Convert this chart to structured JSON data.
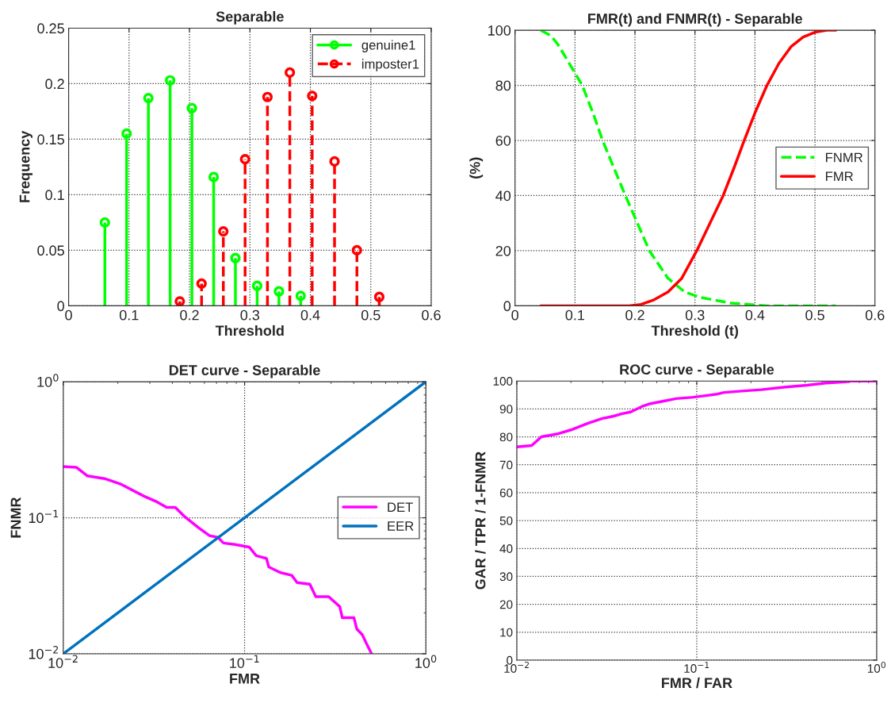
{
  "chart_data": [
    {
      "type": "lollipop",
      "title": "Separable",
      "xlabel": "Threshold",
      "ylabel": "Frequency",
      "xlim": [
        0,
        0.6
      ],
      "xticks": [
        0,
        0.1,
        0.2,
        0.3,
        0.4,
        0.5,
        0.6
      ],
      "ylim": [
        0,
        0.25
      ],
      "yticks": [
        0,
        0.05,
        0.1,
        0.15,
        0.2,
        0.25
      ],
      "grid": true,
      "legend": "top right",
      "marker": "circle",
      "series": [
        {
          "name": "genuine1",
          "color": "#00ff00",
          "line_style": "solid",
          "x": [
            0.06,
            0.096,
            0.132,
            0.168,
            0.204,
            0.24,
            0.276,
            0.312,
            0.348,
            0.384
          ],
          "values": [
            0.075,
            0.155,
            0.187,
            0.203,
            0.178,
            0.116,
            0.043,
            0.018,
            0.013,
            0.009
          ]
        },
        {
          "name": "imposter1",
          "color": "#ff0000",
          "line_style": "dashed",
          "x": [
            0.184,
            0.22,
            0.256,
            0.292,
            0.329,
            0.366,
            0.403,
            0.44,
            0.477,
            0.514
          ],
          "values": [
            0.004,
            0.02,
            0.067,
            0.132,
            0.188,
            0.21,
            0.189,
            0.13,
            0.05,
            0.008
          ]
        }
      ]
    },
    {
      "type": "line",
      "title": "FMR(t) and FNMR(t) - Separable",
      "xlabel": "Threshold (t)",
      "ylabel": "(%)",
      "xlim": [
        0,
        0.6
      ],
      "xticks": [
        0,
        0.1,
        0.2,
        0.3,
        0.4,
        0.5,
        0.6
      ],
      "ylim": [
        0,
        100
      ],
      "yticks": [
        0,
        20,
        40,
        60,
        80,
        100
      ],
      "grid": true,
      "legend": "right",
      "series": [
        {
          "name": "FNMR",
          "color": "#00ff00",
          "line_style": "dashed",
          "x": [
            0.043,
            0.06,
            0.071,
            0.085,
            0.112,
            0.13,
            0.146,
            0.165,
            0.184,
            0.2,
            0.224,
            0.255,
            0.283,
            0.31,
            0.335,
            0.36,
            0.39,
            0.42,
            0.535
          ],
          "values": [
            100,
            98,
            95,
            90,
            80,
            70,
            60,
            50,
            40,
            32,
            20,
            10,
            5,
            3,
            2,
            1,
            0.5,
            0,
            0
          ]
        },
        {
          "name": "FMR",
          "color": "#ff0000",
          "line_style": "solid",
          "x": [
            0.043,
            0.19,
            0.21,
            0.23,
            0.255,
            0.278,
            0.303,
            0.325,
            0.347,
            0.365,
            0.382,
            0.4,
            0.42,
            0.44,
            0.46,
            0.48,
            0.5,
            0.52,
            0.535
          ],
          "values": [
            0,
            0,
            0.5,
            2,
            5,
            10,
            20,
            30,
            40,
            50,
            60,
            70,
            80,
            88,
            94,
            97.5,
            99.3,
            100,
            100
          ]
        }
      ]
    },
    {
      "type": "line",
      "title": "DET curve - Separable",
      "xlabel": "FMR",
      "ylabel": "FNMR",
      "log": "xy",
      "xlim": [
        0.01,
        1
      ],
      "xticks": [
        {
          "value": 0.01,
          "label": "10$^{−2}$"
        },
        {
          "value": 0.1,
          "label": "10$^{−1}$"
        },
        {
          "value": 1,
          "label": "10$^{0}$"
        }
      ],
      "ylim": [
        0.01,
        1
      ],
      "yticks": [
        {
          "value": 0.01,
          "label": "10$^{−2}$"
        },
        {
          "value": 0.1,
          "label": "10$^{−1}$"
        },
        {
          "value": 1,
          "label": "10$^{0}$"
        }
      ],
      "grid": true,
      "legend": "right",
      "series": [
        {
          "name": "DET",
          "color": "#ff00ff",
          "line_style": "solid",
          "x": [
            0.01,
            0.0118,
            0.0136,
            0.0169,
            0.0209,
            0.0279,
            0.0328,
            0.0372,
            0.0415,
            0.0463,
            0.0554,
            0.0641,
            0.0713,
            0.0765,
            0.0886,
            0.106,
            0.116,
            0.132,
            0.136,
            0.157,
            0.182,
            0.195,
            0.229,
            0.247,
            0.291,
            0.335,
            0.346,
            0.401,
            0.416,
            0.446,
            0.47,
            0.5
          ],
          "values": [
            0.238,
            0.235,
            0.203,
            0.194,
            0.176,
            0.144,
            0.131,
            0.119,
            0.119,
            0.103,
            0.085,
            0.0738,
            0.0717,
            0.0652,
            0.0636,
            0.0609,
            0.0526,
            0.0503,
            0.0435,
            0.0396,
            0.0377,
            0.0334,
            0.0325,
            0.0263,
            0.0263,
            0.0222,
            0.0184,
            0.0184,
            0.0152,
            0.0138,
            0.0119,
            0.0101
          ]
        },
        {
          "name": "EER",
          "color": "#0072bd",
          "line_style": "solid",
          "x": [
            0.01,
            1
          ],
          "values": [
            0.01,
            1
          ]
        }
      ]
    },
    {
      "type": "line",
      "title": "ROC curve - Separable",
      "xlabel": "FMR / FAR",
      "ylabel": "GAR / TPR / 1-FNMR",
      "log": "x",
      "xlim": [
        0.01,
        1
      ],
      "xticks": [
        {
          "value": 0.01,
          "label": "10$^{−2}$"
        },
        {
          "value": 0.1,
          "label": "10$^{−1}$"
        },
        {
          "value": 1,
          "label": "10$^{0}$"
        }
      ],
      "ylim": [
        0,
        100
      ],
      "yticks": [
        0,
        10,
        20,
        30,
        40,
        50,
        60,
        70,
        80,
        90,
        100
      ],
      "grid": true,
      "series": [
        {
          "color": "#ff00ff",
          "line_style": "solid",
          "x": [
            0.01,
            0.0121,
            0.0137,
            0.0167,
            0.02,
            0.0249,
            0.0299,
            0.0345,
            0.0385,
            0.0429,
            0.0497,
            0.0553,
            0.0664,
            0.0768,
            0.0954,
            0.11,
            0.127,
            0.142,
            0.177,
            0.228,
            0.305,
            0.41,
            0.52,
            0.67,
            0.72,
            1
          ],
          "values": [
            76.4,
            76.9,
            80,
            81,
            82.5,
            84.9,
            86.6,
            87.4,
            88.3,
            88.9,
            90.9,
            91.9,
            92.9,
            93.7,
            94.2,
            94.7,
            95.2,
            95.9,
            96.4,
            96.9,
            97.8,
            98.5,
            99.3,
            99.7,
            100,
            100
          ]
        }
      ]
    }
  ]
}
